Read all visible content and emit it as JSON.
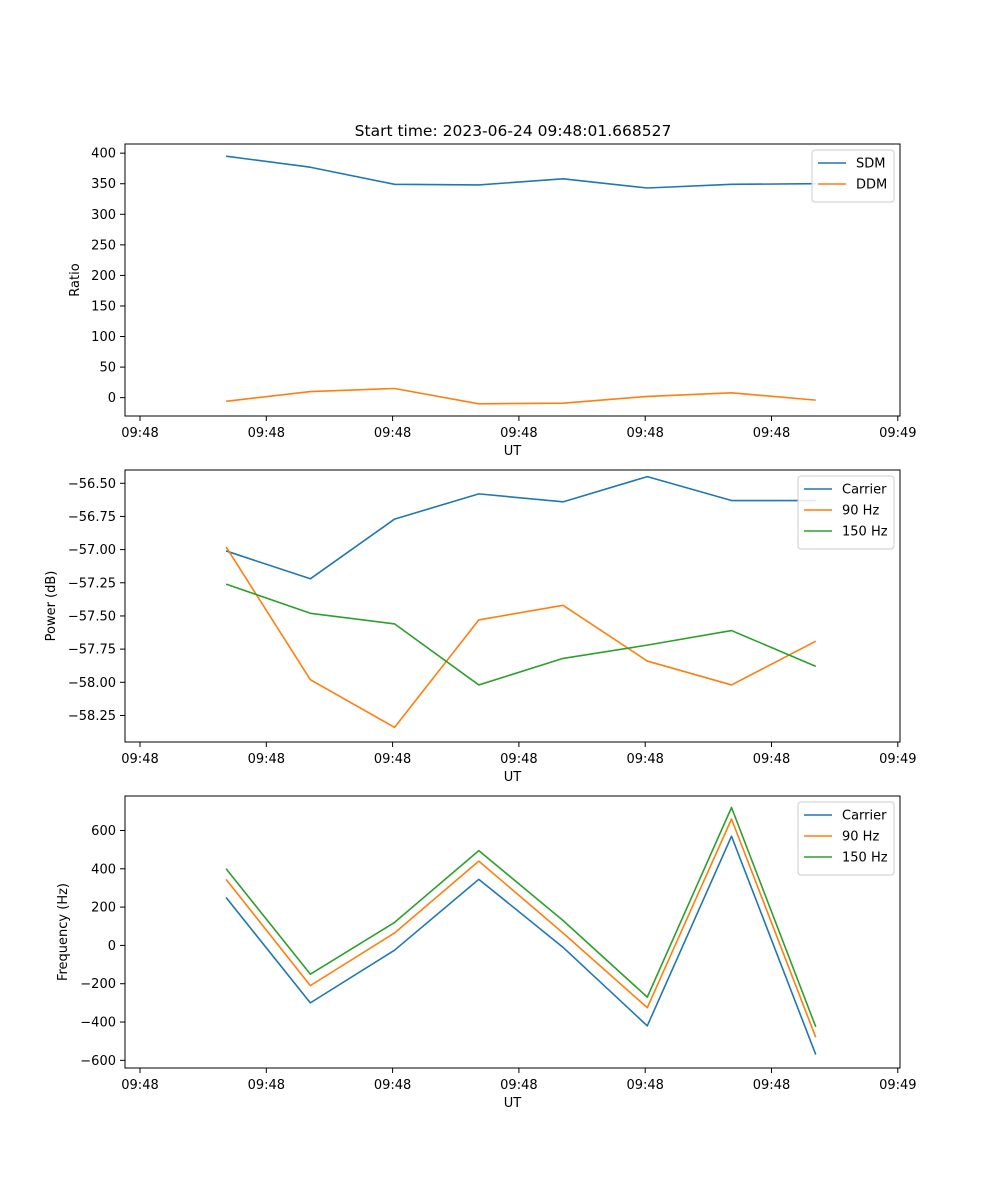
{
  "figure": {
    "title": "Start time: 2023-06-24 09:48:01.668527"
  },
  "chart_data": [
    {
      "type": "line",
      "title": "Start time: 2023-06-24 09:48:01.668527",
      "xlabel": "UT",
      "ylabel": "Ratio",
      "x_tick_labels": [
        "09:48",
        "09:48",
        "09:48",
        "09:48",
        "09:48",
        "09:48",
        "09:48"
      ],
      "x_tick_last": "09:49",
      "x_index": [
        1,
        2,
        3,
        4,
        5,
        6,
        7,
        8
      ],
      "xlim": [
        -0.2,
        9.0
      ],
      "ylim": [
        -30,
        415
      ],
      "y_ticks": [
        0,
        50,
        100,
        150,
        200,
        250,
        300,
        350,
        400
      ],
      "legend": "top-right",
      "series": [
        {
          "name": "SDM",
          "color": "#1f77b4",
          "values": [
            395,
            377,
            349,
            348,
            358,
            343,
            349,
            350
          ]
        },
        {
          "name": "DDM",
          "color": "#ff7f0e",
          "values": [
            -6,
            10,
            15,
            -10,
            -9,
            2,
            8,
            -4
          ]
        }
      ]
    },
    {
      "type": "line",
      "title": "",
      "xlabel": "UT",
      "ylabel": "Power (dB)",
      "x_tick_labels": [
        "09:48",
        "09:48",
        "09:48",
        "09:48",
        "09:48",
        "09:48",
        "09:48"
      ],
      "x_tick_last": "09:49",
      "x_index": [
        1,
        2,
        3,
        4,
        5,
        6,
        7,
        8
      ],
      "xlim": [
        -0.2,
        9.0
      ],
      "ylim": [
        -58.45,
        -56.4
      ],
      "y_ticks": [
        -58.25,
        -58.0,
        -57.75,
        -57.5,
        -57.25,
        -57.0,
        -56.75,
        -56.5
      ],
      "y_tick_labels": [
        "−58.25",
        "−58.00",
        "−57.75",
        "−57.50",
        "−57.25",
        "−57.00",
        "−56.75",
        "−56.50"
      ],
      "legend": "top-right",
      "series": [
        {
          "name": "Carrier",
          "color": "#1f77b4",
          "values": [
            -57.01,
            -57.22,
            -56.77,
            -56.58,
            -56.64,
            -56.45,
            -56.63,
            -56.63
          ]
        },
        {
          "name": "90 Hz",
          "color": "#ff7f0e",
          "values": [
            -56.98,
            -57.98,
            -58.34,
            -57.53,
            -57.42,
            -57.84,
            -58.02,
            -57.69
          ]
        },
        {
          "name": "150 Hz",
          "color": "#2ca02c",
          "values": [
            -57.26,
            -57.48,
            -57.56,
            -58.02,
            -57.82,
            -57.72,
            -57.61,
            -57.88
          ]
        }
      ]
    },
    {
      "type": "line",
      "title": "",
      "xlabel": "UT",
      "ylabel": "Frequency (Hz)",
      "x_tick_labels": [
        "09:48",
        "09:48",
        "09:48",
        "09:48",
        "09:48",
        "09:48",
        "09:48"
      ],
      "x_tick_last": "09:49",
      "x_index": [
        1,
        2,
        3,
        4,
        5,
        6,
        7,
        8
      ],
      "xlim": [
        -0.2,
        9.0
      ],
      "ylim": [
        -640,
        780
      ],
      "y_ticks": [
        -600,
        -400,
        -200,
        0,
        200,
        400,
        600
      ],
      "y_tick_labels": [
        "−600",
        "−400",
        "−200",
        "0",
        "200",
        "400",
        "600"
      ],
      "legend": "top-right",
      "series": [
        {
          "name": "Carrier",
          "color": "#1f77b4",
          "values": [
            250,
            -300,
            -25,
            345,
            -10,
            -420,
            570,
            -570
          ]
        },
        {
          "name": "90 Hz",
          "color": "#ff7f0e",
          "values": [
            345,
            -210,
            65,
            440,
            65,
            -325,
            660,
            -480
          ]
        },
        {
          "name": "150 Hz",
          "color": "#2ca02c",
          "values": [
            400,
            -150,
            120,
            495,
            130,
            -270,
            720,
            -425
          ]
        }
      ]
    }
  ]
}
